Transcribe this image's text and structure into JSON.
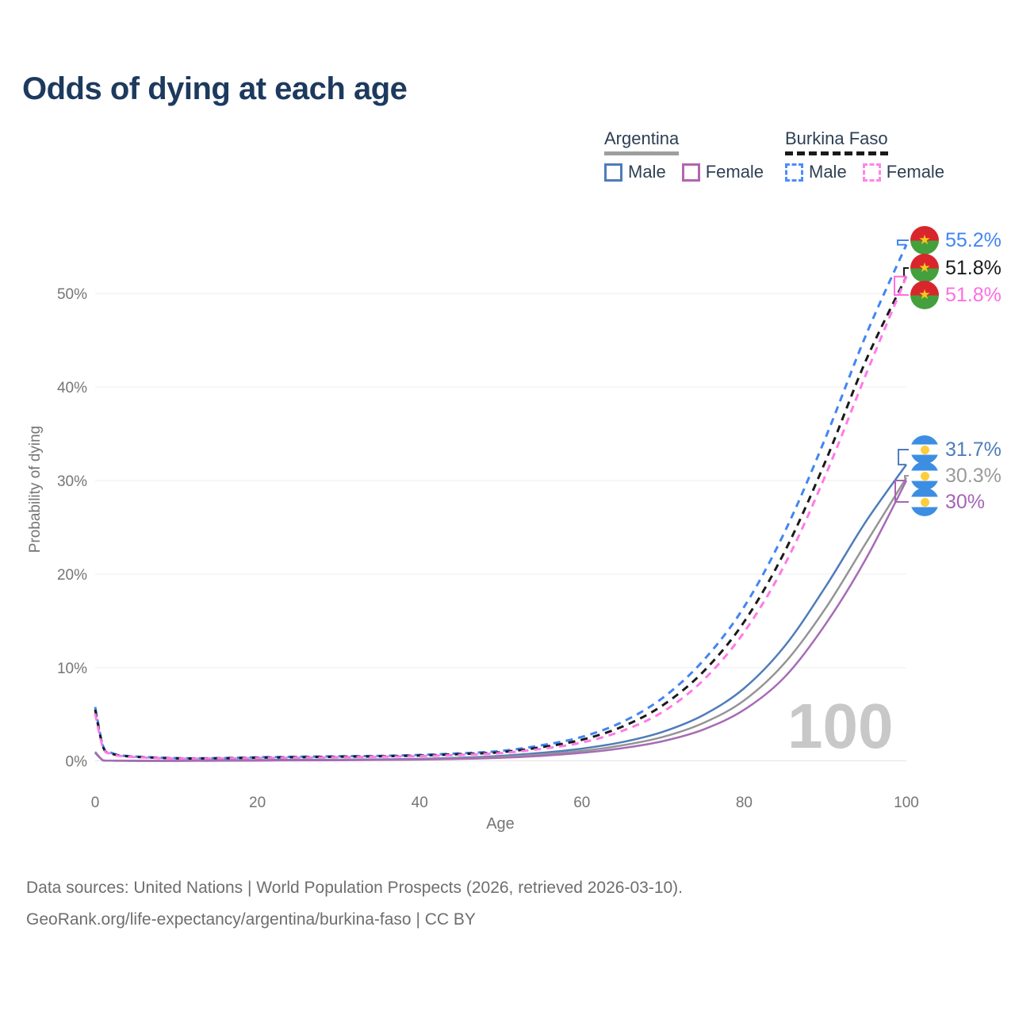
{
  "title": "Odds of dying at each age",
  "legend": {
    "groups": [
      {
        "label": "Argentina",
        "underline_color": "#9e9e9e",
        "items": [
          {
            "label": "Male",
            "color": "#4f7cba"
          },
          {
            "label": "Female",
            "color": "#b066ae"
          }
        ]
      },
      {
        "label": "Burkina Faso",
        "underline_color": "#1a1a1a",
        "items": [
          {
            "label": "Male",
            "color": "#4f8df9"
          },
          {
            "label": "Female",
            "color": "#ff85e8"
          }
        ]
      }
    ]
  },
  "chart_data": {
    "type": "line",
    "title": "Odds of dying at each age",
    "xlabel": "Age",
    "ylabel": "Probability of dying",
    "xlim": [
      0,
      100
    ],
    "ylim": [
      0,
      57.5
    ],
    "grid": true,
    "legend_position": "top-right",
    "x_ticks": [
      0,
      20,
      40,
      60,
      80,
      100
    ],
    "y_ticks": [
      {
        "value": 0,
        "label": "0%"
      },
      {
        "value": 10,
        "label": "10%"
      },
      {
        "value": 20,
        "label": "20%"
      },
      {
        "value": 30,
        "label": "30%"
      },
      {
        "value": 40,
        "label": "40%"
      },
      {
        "value": 50,
        "label": "50%"
      }
    ],
    "ages": [
      0,
      1,
      2,
      3,
      5,
      10,
      15,
      20,
      25,
      30,
      35,
      40,
      45,
      50,
      55,
      60,
      65,
      70,
      75,
      80,
      85,
      90,
      95,
      100
    ],
    "series": [
      {
        "id": "burkina-faso-male",
        "country": "Burkina Faso",
        "sex": "Male",
        "color": "#4285f4",
        "dashed": true,
        "values": [
          5.8,
          1.55,
          0.9,
          0.65,
          0.5,
          0.33,
          0.33,
          0.42,
          0.48,
          0.53,
          0.58,
          0.68,
          0.85,
          1.1,
          1.7,
          2.6,
          4.2,
          6.8,
          10.8,
          16.5,
          24.5,
          34.5,
          45.5,
          55.2
        ]
      },
      {
        "id": "burkina-faso-all",
        "country": "Burkina Faso",
        "sex": "All",
        "color": "#1a1a1a",
        "dashed": true,
        "values": [
          5.5,
          1.48,
          0.85,
          0.62,
          0.47,
          0.31,
          0.31,
          0.38,
          0.43,
          0.48,
          0.53,
          0.61,
          0.76,
          0.97,
          1.5,
          2.3,
          3.7,
          6.0,
          9.6,
          14.9,
          22.4,
          32.0,
          42.8,
          51.8
        ]
      },
      {
        "id": "burkina-faso-female",
        "country": "Burkina Faso",
        "sex": "Female",
        "color": "#ff7ae6",
        "dashed": true,
        "values": [
          5.1,
          1.4,
          0.8,
          0.58,
          0.44,
          0.29,
          0.29,
          0.34,
          0.38,
          0.43,
          0.48,
          0.55,
          0.68,
          0.87,
          1.32,
          2.0,
          3.25,
          5.3,
          8.7,
          13.8,
          21.0,
          30.5,
          41.3,
          51.8
        ]
      },
      {
        "id": "argentina-male",
        "country": "Argentina",
        "sex": "Male",
        "color": "#4f7cba",
        "dashed": false,
        "values": [
          1.0,
          0.09,
          0.07,
          0.06,
          0.05,
          0.05,
          0.09,
          0.13,
          0.15,
          0.17,
          0.2,
          0.26,
          0.38,
          0.58,
          0.9,
          1.35,
          2.05,
          3.15,
          4.95,
          7.8,
          12.3,
          18.6,
          25.6,
          31.7
        ]
      },
      {
        "id": "argentina-all",
        "country": "Argentina",
        "sex": "All",
        "color": "#949494",
        "dashed": false,
        "values": [
          0.95,
          0.08,
          0.06,
          0.05,
          0.04,
          0.04,
          0.07,
          0.1,
          0.12,
          0.14,
          0.17,
          0.22,
          0.31,
          0.47,
          0.73,
          1.1,
          1.7,
          2.6,
          4.1,
          6.5,
          10.5,
          16.3,
          23.3,
          30.3
        ]
      },
      {
        "id": "argentina-female",
        "country": "Argentina",
        "sex": "Female",
        "color": "#a76bb5",
        "dashed": false,
        "values": [
          0.9,
          0.08,
          0.06,
          0.05,
          0.04,
          0.03,
          0.05,
          0.07,
          0.09,
          0.11,
          0.14,
          0.18,
          0.25,
          0.37,
          0.58,
          0.9,
          1.4,
          2.15,
          3.4,
          5.5,
          9.0,
          14.6,
          21.6,
          30.0
        ]
      }
    ]
  },
  "annotations": [
    {
      "series_id": "burkina-faso-male",
      "value": 55.2,
      "value_label": "55.2%",
      "color": "#4285f4",
      "flag": "burkina-faso"
    },
    {
      "series_id": "burkina-faso-all",
      "value": 51.8,
      "value_label": "51.8%",
      "color": "#1a1a1a",
      "flag": "burkina-faso"
    },
    {
      "series_id": "burkina-faso-female",
      "value": 51.8,
      "value_label": "51.8%",
      "color": "#ff6ee4",
      "flag": "burkina-faso"
    },
    {
      "series_id": "argentina-male",
      "value": 31.7,
      "value_label": "31.7%",
      "color": "#4f7cba",
      "flag": "argentina"
    },
    {
      "series_id": "argentina-all",
      "value": 30.3,
      "value_label": "30.3%",
      "color": "#9a9a9a",
      "flag": "argentina"
    },
    {
      "series_id": "argentina-female",
      "value": 30,
      "value_label": "30%",
      "color": "#a763b5",
      "flag": "argentina"
    }
  ],
  "watermark": "100",
  "footer": {
    "line1": "Data sources: United Nations | World Population Prospects (2026, retrieved 2026-03-10).",
    "line2": "GeoRank.org/life-expectancy/argentina/burkina-faso | CC BY"
  }
}
